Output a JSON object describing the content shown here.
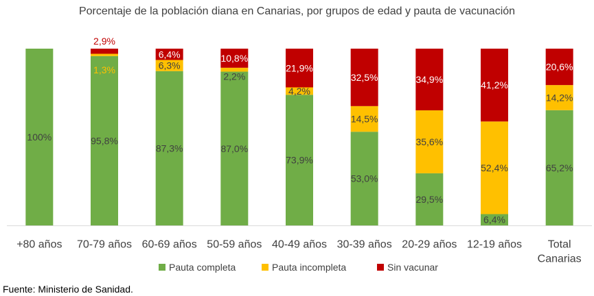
{
  "chart_data": {
    "type": "bar",
    "stacked": true,
    "percent_stacked": true,
    "title": "Porcentaje de la población diana en Canarias, por grupos de edad y pauta de vacunación",
    "categories": [
      "+80 años",
      "70-79 años",
      "60-69 años",
      "50-59 años",
      "40-49 años",
      "30-39 años",
      "20-29 años",
      "12-19 años",
      "Total Canarias"
    ],
    "category_lines": [
      [
        "+80 años"
      ],
      [
        "70-79 años"
      ],
      [
        "60-69 años"
      ],
      [
        "50-59 años"
      ],
      [
        "40-49 años"
      ],
      [
        "30-39 años"
      ],
      [
        "20-29 años"
      ],
      [
        "12-19 años"
      ],
      [
        "Total",
        "Canarias"
      ]
    ],
    "series": [
      {
        "name": "Pauta completa",
        "color": "#70AD47",
        "values": [
          100,
          95.8,
          87.3,
          87.0,
          73.9,
          53.0,
          29.5,
          6.4,
          65.2
        ],
        "labels": [
          "100%",
          "95,8%",
          "87,3%",
          "87,0%",
          "73,9%",
          "53,0%",
          "29,5%",
          "6,4%",
          "65,2%"
        ]
      },
      {
        "name": "Pauta incompleta",
        "color": "#FFC000",
        "values": [
          0,
          1.3,
          6.3,
          2.2,
          4.2,
          14.5,
          35.6,
          52.4,
          14.2
        ],
        "labels": [
          "",
          "1,3%",
          "6,3%",
          "2,2%",
          "4,2%",
          "14,5%",
          "35,6%",
          "52,4%",
          "14,2%"
        ]
      },
      {
        "name": "Sin vacunar",
        "color": "#C00000",
        "values": [
          0,
          2.9,
          6.4,
          10.8,
          21.9,
          32.5,
          34.9,
          41.2,
          20.6
        ],
        "labels": [
          "",
          "2,9%",
          "6,4%",
          "10,8%",
          "21,9%",
          "32,5%",
          "34,9%",
          "41,2%",
          "20,6%"
        ]
      }
    ],
    "ylim": [
      0,
      100
    ],
    "grid": false,
    "legend_position": "bottom"
  },
  "source": "Fuente: Ministerio de Sanidad."
}
